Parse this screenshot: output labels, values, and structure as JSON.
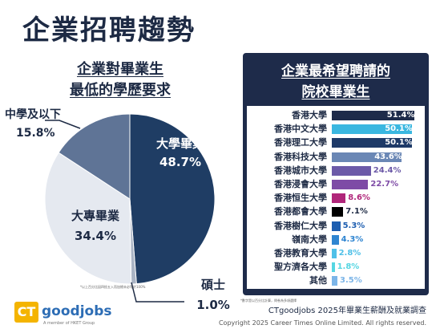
{
  "title": "企業招聘趨勢",
  "colors": {
    "navy": "#1d2a44",
    "panel": "#1e2b4a",
    "accent": "#f4b400"
  },
  "chart_data": [
    {
      "type": "pie",
      "title_line1": "企業對畢業生",
      "title_line2": "最低的學歷要求",
      "slices": [
        {
          "label": "大學畢業",
          "value": 48.7,
          "display": "48.7%",
          "color": "#1f3d64"
        },
        {
          "label": "碩士",
          "value": 1.0,
          "display": "1.0%",
          "color": "#aab4c4"
        },
        {
          "label": "大專畢業",
          "value": 34.4,
          "display": "34.4%",
          "color": "#e5e9f0"
        },
        {
          "label": "中學及以下",
          "value": 15.8,
          "display": "15.8%",
          "color": "#5f7496"
        }
      ],
      "footnote": "*以上百分比因四捨五入而加總未必等於100%"
    },
    {
      "type": "bar",
      "title_line1": "企業最希望聘請的",
      "title_line2": "院校畢業生",
      "xlim": [
        0,
        55
      ],
      "categories": [
        "香港大學",
        "香港中文大學",
        "香港理工大學",
        "香港科技大學",
        "香港城市大學",
        "香港浸會大學",
        "香港恒生大學",
        "香港都會大學",
        "香港樹仁大學",
        "嶺南大學",
        "香港教育大學",
        "聖方濟各大學",
        "其他"
      ],
      "values": [
        51.4,
        50.1,
        50.1,
        43.6,
        24.4,
        22.7,
        8.6,
        7.1,
        5.3,
        4.3,
        2.8,
        1.8,
        3.5
      ],
      "labels": [
        "51.4%",
        "50.1%",
        "50.1%",
        "43.6%",
        "24.4%",
        "22.7%",
        "8.6%",
        "7.1%",
        "5.3%",
        "4.3%",
        "2.8%",
        "1.8%",
        "3.5%"
      ],
      "colors": [
        "#1e2b4a",
        "#3ab7e0",
        "#1e3a68",
        "#6a87b5",
        "#6c5aa8",
        "#7e4ba6",
        "#b0267a",
        "#000000",
        "#1d5eb0",
        "#2f85d1",
        "#4fc0e8",
        "#55d6e2",
        "#7cb5e8"
      ],
      "footnote": "*數字是以百分比計算，問卷為多項選擇"
    }
  ],
  "logo": {
    "ct": "CT",
    "word": "goodjobs",
    "sub": "A member of HKET Group"
  },
  "survey": "CTgoodjobs 2025年畢業生薪酬及就業調查",
  "copyright": "Copyright 2025 Career Times Online Limited. All rights reserved."
}
